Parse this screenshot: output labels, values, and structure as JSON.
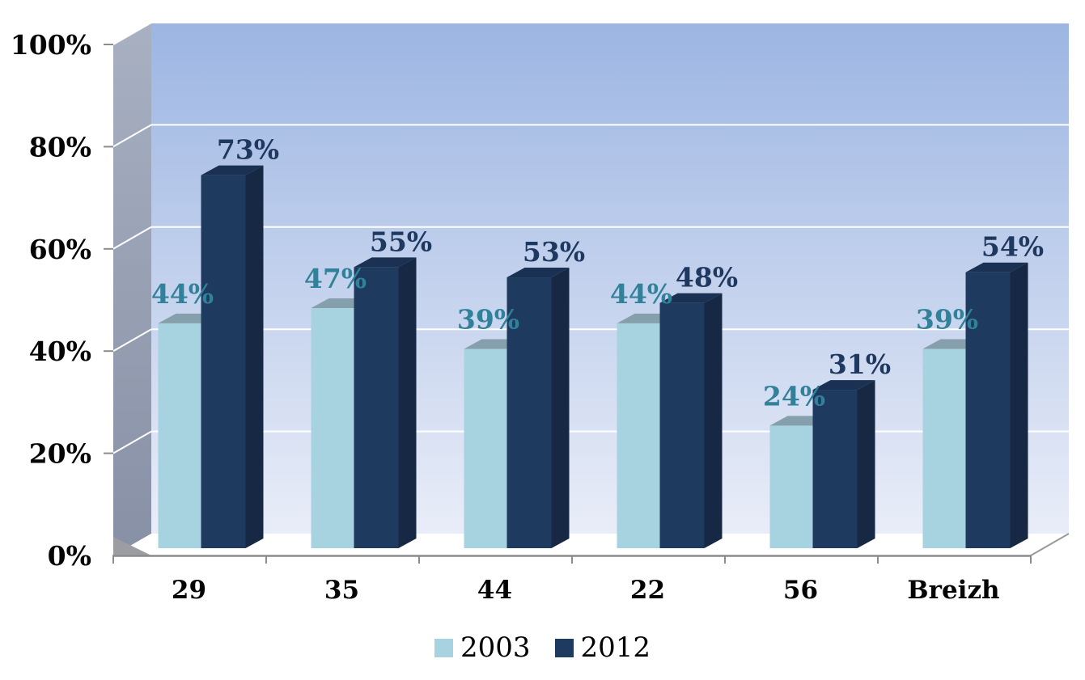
{
  "chart_data": {
    "type": "bar",
    "variant": "3d-clustered-column",
    "title": "",
    "xlabel": "",
    "ylabel": "",
    "categories": [
      "29",
      "35",
      "44",
      "22",
      "56",
      "Breizh"
    ],
    "series": [
      {
        "name": "2003",
        "values": [
          44,
          47,
          39,
          44,
          24,
          39
        ],
        "labels": [
          "44%",
          "47%",
          "39%",
          "44%",
          "24%",
          "39%"
        ],
        "color_front": "#A7D2E0",
        "color_top": "#85A0AC",
        "label_color": "#31819A"
      },
      {
        "name": "2012",
        "values": [
          73,
          55,
          53,
          48,
          31,
          54
        ],
        "labels": [
          "73%",
          "55%",
          "53%",
          "48%",
          "31%",
          "54%"
        ],
        "color_front": "#1F3A5F",
        "color_top": "#1B3153",
        "color_side": "#162844",
        "label_color": "#1F385F"
      }
    ],
    "yticks": [
      "0%",
      "20%",
      "40%",
      "60%",
      "80%",
      "100%"
    ],
    "ylim": [
      0,
      100
    ],
    "grid": true,
    "legend_position": "bottom",
    "plot_bg_top": "#9CB5E2",
    "plot_bg_bottom": "#E9EDF8",
    "wall_top": "#A8B0C2",
    "wall_bottom": "#8790A5",
    "gridline_color": "#FFFFFF",
    "axis_color": "#8C8C8C",
    "floor_color": "#FFFFFF",
    "floor_corner_color": "#9B9DA3",
    "text_color": "#050505"
  }
}
